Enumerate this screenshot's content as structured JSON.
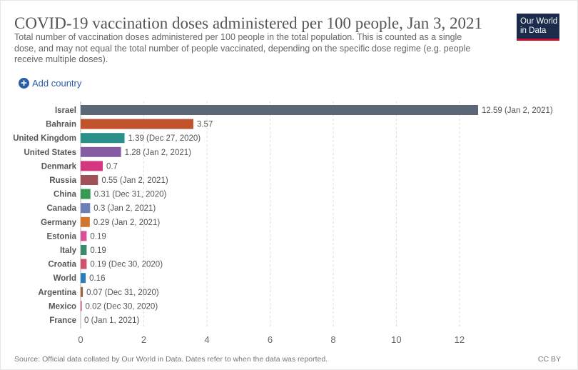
{
  "header": {
    "title": "COVID-19 vaccination doses administered per 100 people, Jan 3, 2021",
    "subtitle": "Total number of vaccination doses administered per 100 people in the total population. This is counted as a single dose, and may not equal the total number of people vaccinated, depending on the specific dose regime (e.g. people receive multiple doses).",
    "logo_line1": "Our World",
    "logo_line2": "in Data"
  },
  "controls": {
    "add_country_label": "Add country",
    "add_icon": "plus-circle-icon"
  },
  "footer": {
    "source": "Source: Official data collated by Our World in Data. Dates refer to when the data was reported.",
    "license": "CC BY"
  },
  "colors": {
    "logo_bg": "#1a2b4b",
    "logo_accent": "#c8102e",
    "link": "#2b5ea8"
  },
  "chart_data": {
    "type": "bar",
    "orientation": "horizontal",
    "categories": [
      "Israel",
      "Bahrain",
      "United Kingdom",
      "United States",
      "Denmark",
      "Russia",
      "China",
      "Canada",
      "Germany",
      "Estonia",
      "Italy",
      "Croatia",
      "World",
      "Argentina",
      "Mexico",
      "France"
    ],
    "values": [
      12.59,
      3.57,
      1.39,
      1.28,
      0.7,
      0.55,
      0.31,
      0.3,
      0.29,
      0.19,
      0.19,
      0.19,
      0.16,
      0.07,
      0.02,
      0
    ],
    "value_labels": [
      "12.59 (Jan 2, 2021)",
      "3.57",
      "1.39 (Dec 27, 2020)",
      "1.28 (Jan 2, 2021)",
      "0.7",
      "0.55 (Jan 2, 2021)",
      "0.31 (Dec 31, 2020)",
      "0.3 (Jan 2, 2021)",
      "0.29 (Jan 2, 2021)",
      "0.19",
      "0.19",
      "0.19 (Dec 30, 2020)",
      "0.16",
      "0.07 (Dec 31, 2020)",
      "0.02 (Dec 30, 2020)",
      "0 (Jan 1, 2021)"
    ],
    "colors": [
      "#5b6677",
      "#c0532b",
      "#2a9089",
      "#855ba3",
      "#d6357f",
      "#a14f57",
      "#359a54",
      "#6c7fb8",
      "#d3742f",
      "#d94f9c",
      "#388a6a",
      "#d3506d",
      "#2e7cb8",
      "#a0623d",
      "#c44e75",
      "#9b9b9b"
    ],
    "xticks": [
      0,
      2,
      4,
      6,
      8,
      10,
      12
    ],
    "xlim": [
      0,
      12.59
    ],
    "grid": true
  }
}
